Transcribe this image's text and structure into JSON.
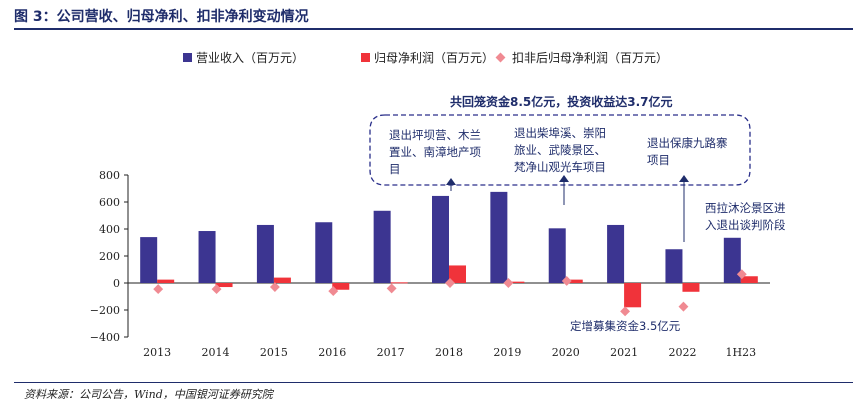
{
  "header": {
    "title": "图 3：公司营收、归母净利、扣非净利变动情况"
  },
  "footer": {
    "source": "资料来源：公司公告，Wind，中国银河证券研究院"
  },
  "colors": {
    "revenue": "#3c3591",
    "net_profit": "#f0333a",
    "deducted_profit": "#f08a92",
    "annotation": "#1f2d6b"
  },
  "chart_data": {
    "type": "bar",
    "categories": [
      "2013",
      "2014",
      "2015",
      "2016",
      "2017",
      "2018",
      "2019",
      "2020",
      "2021",
      "2022",
      "1H23"
    ],
    "series": [
      {
        "name": "营业收入（百万元）",
        "kind": "bar",
        "values": [
          340,
          385,
          430,
          450,
          535,
          645,
          675,
          405,
          430,
          250,
          335
        ]
      },
      {
        "name": "归母净利润（百万元）",
        "kind": "bar",
        "values": [
          25,
          -30,
          40,
          -50,
          5,
          130,
          10,
          25,
          -180,
          -65,
          50
        ]
      },
      {
        "name": "扣非后归母净利润（百万元）",
        "kind": "scatter",
        "values": [
          -45,
          -45,
          -30,
          -60,
          -40,
          0,
          0,
          15,
          -210,
          -175,
          65
        ]
      }
    ],
    "ylim": [
      -400,
      800
    ],
    "yticks": [
      "800",
      "600",
      "400",
      "200",
      "0",
      "−200",
      "−400"
    ],
    "yticks_values": [
      800,
      600,
      400,
      200,
      0,
      -200,
      -400
    ],
    "legend": "top",
    "annotations": {
      "box_title": "共回笼资金8.5亿元，投资收益达3.7亿元",
      "note1": [
        "退出坪坝营、木兰",
        "置业、南漳地产项",
        "目"
      ],
      "note2": [
        "退出柴埠溪、崇阳",
        "旅业、武陵景区、",
        "梵净山观光车项目"
      ],
      "note3": [
        "退出保康九路寨",
        "项目"
      ],
      "note4": [
        "西拉沐沦景区进",
        "入退出谈判阶段"
      ],
      "note5": "定增募集资金3.5亿元"
    }
  }
}
